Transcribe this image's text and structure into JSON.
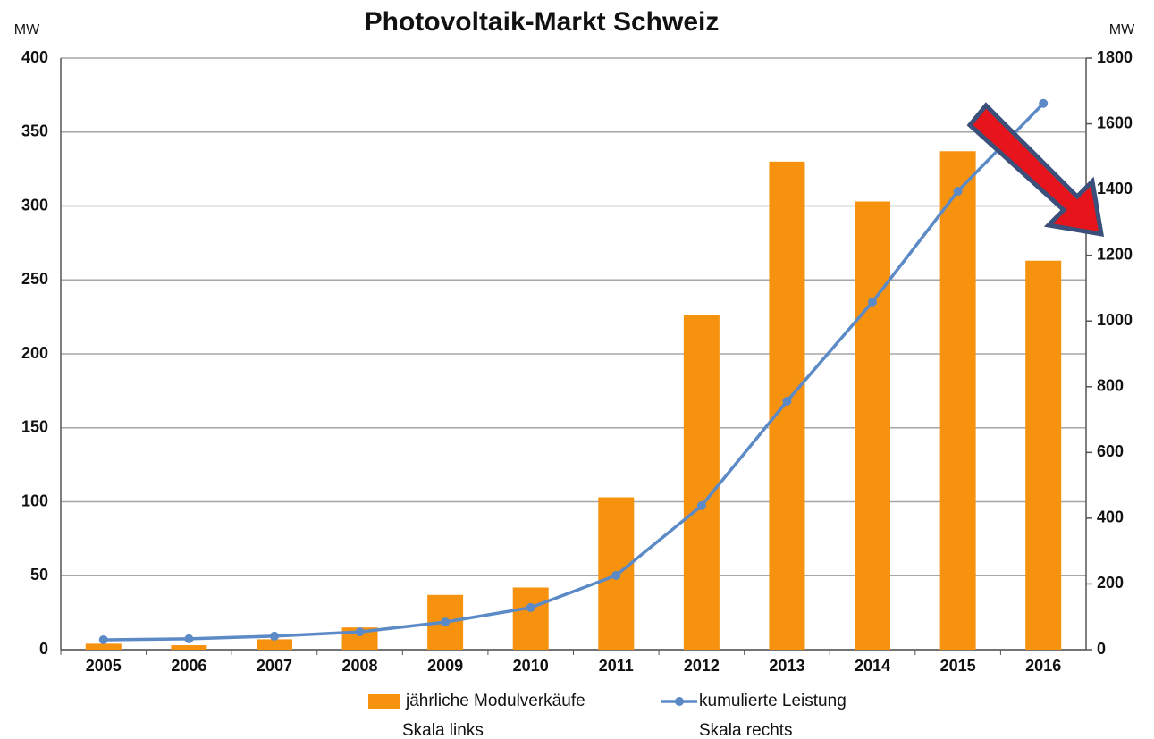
{
  "chart_data": {
    "type": "bar",
    "title": "Photovoltaik-Markt Schweiz",
    "y_label": "MW",
    "y2_label": "MW",
    "categories": [
      "2005",
      "2006",
      "2007",
      "2008",
      "2009",
      "2010",
      "2011",
      "2012",
      "2013",
      "2014",
      "2015",
      "2016"
    ],
    "series": [
      {
        "name": "jährliche Modulverkäufe",
        "scale_note": "Skala links",
        "type": "bar",
        "color": "#f7920f",
        "values": [
          4,
          3,
          7,
          15,
          37,
          42,
          103,
          226,
          330,
          303,
          337,
          263
        ]
      },
      {
        "name": "kumulierte Leistung",
        "scale_note": "Skala rechts",
        "type": "line",
        "axis": "y2",
        "color": "#5b8ac6",
        "values": [
          30,
          33,
          41,
          54,
          84,
          128,
          226,
          438,
          756,
          1058,
          1395,
          1662
        ]
      }
    ],
    "ylim": [
      0,
      400
    ],
    "yticks": [
      0,
      50,
      100,
      150,
      200,
      250,
      300,
      350,
      400
    ],
    "y2lim": [
      0,
      1800
    ],
    "y2ticks": [
      0,
      200,
      400,
      600,
      800,
      1000,
      1200,
      1400,
      1600,
      1800
    ],
    "grid": true
  }
}
